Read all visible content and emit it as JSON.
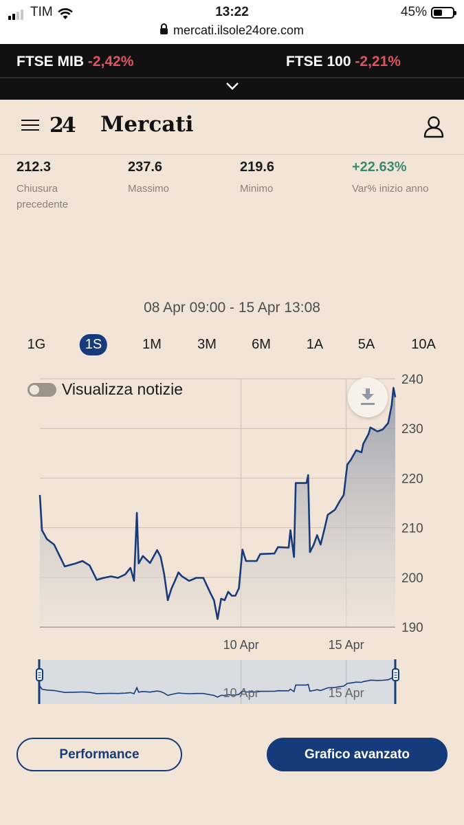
{
  "status_bar": {
    "carrier": "TIM",
    "time": "13:22",
    "battery": "45%",
    "battery_level": 0.45,
    "url": "mercati.ilsole24ore.com"
  },
  "ticker": [
    {
      "name": "FTSE MIB",
      "change": "-2,42%"
    },
    {
      "name": "FTSE 100",
      "change": "-2,21%"
    }
  ],
  "header": {
    "logo": "24",
    "title": "Mercati"
  },
  "stats": [
    {
      "value": "212.3",
      "label": "Chiusura precedente"
    },
    {
      "value": "237.6",
      "label": "Massimo"
    },
    {
      "value": "219.6",
      "label": "Minimo"
    },
    {
      "value": "+22.63%",
      "label": "Var% inizio anno"
    }
  ],
  "date_range": "08 Apr 09:00 - 15 Apr 13:08",
  "periods": [
    "1G",
    "1S",
    "1M",
    "3M",
    "6M",
    "1A",
    "5A",
    "10A"
  ],
  "active_period": "1S",
  "news_toggle": {
    "label": "Visualizza notizie",
    "on": false
  },
  "colors": {
    "accent": "#163b7a",
    "negative": "#e05461",
    "positive": "#3b8a6e",
    "background": "#f2e5d8"
  },
  "chart_data": {
    "type": "area",
    "y_ticks": [
      240,
      230,
      220,
      210,
      200,
      190
    ],
    "x_ticks": [
      "10 Apr",
      "15 Apr"
    ],
    "ylim": [
      190,
      240
    ],
    "grid": true,
    "y_axis_side": "right",
    "series": [
      {
        "points": [
          [
            0.0,
            216.6
          ],
          [
            0.6,
            209.5
          ],
          [
            2.0,
            207.7
          ],
          [
            4.0,
            206.6
          ],
          [
            7.0,
            202.2
          ],
          [
            10.0,
            202.8
          ],
          [
            12.0,
            203.3
          ],
          [
            14.0,
            202.4
          ],
          [
            16.0,
            199.5
          ],
          [
            18.0,
            199.9
          ],
          [
            20.0,
            200.2
          ],
          [
            22.0,
            199.9
          ],
          [
            24.0,
            200.6
          ],
          [
            25.5,
            201.9
          ],
          [
            26.5,
            199.3
          ],
          [
            27.3,
            213.0
          ],
          [
            27.8,
            202.8
          ],
          [
            29.0,
            204.3
          ],
          [
            31.0,
            202.9
          ],
          [
            33.0,
            205.5
          ],
          [
            34.0,
            204.1
          ],
          [
            35.0,
            200.6
          ],
          [
            36.0,
            195.4
          ],
          [
            37.0,
            197.7
          ],
          [
            38.0,
            199.3
          ],
          [
            39.0,
            201.0
          ],
          [
            40.0,
            200.2
          ],
          [
            42.0,
            199.3
          ],
          [
            44.0,
            199.9
          ],
          [
            46.0,
            199.9
          ],
          [
            48.0,
            196.8
          ],
          [
            49.0,
            195.4
          ],
          [
            50.0,
            191.6
          ],
          [
            51.0,
            195.7
          ],
          [
            52.0,
            195.4
          ],
          [
            53.0,
            197.1
          ],
          [
            54.0,
            196.3
          ],
          [
            55.0,
            196.3
          ],
          [
            56.0,
            197.8
          ],
          [
            57.0,
            205.6
          ],
          [
            58.0,
            203.3
          ],
          [
            61.0,
            203.3
          ],
          [
            62.0,
            204.7
          ],
          [
            66.0,
            204.8
          ],
          [
            67.0,
            206.1
          ],
          [
            70.0,
            206.0
          ],
          [
            70.5,
            209.5
          ],
          [
            71.5,
            204.1
          ],
          [
            72.0,
            219.0
          ],
          [
            75.0,
            219.0
          ],
          [
            75.5,
            220.6
          ],
          [
            76.0,
            205.1
          ],
          [
            77.0,
            206.5
          ],
          [
            78.0,
            208.5
          ],
          [
            79.0,
            206.6
          ],
          [
            80.0,
            209.5
          ],
          [
            81.0,
            212.6
          ],
          [
            83.0,
            213.6
          ],
          [
            84.5,
            215.5
          ],
          [
            85.5,
            216.6
          ],
          [
            86.5,
            222.7
          ],
          [
            87.5,
            223.7
          ],
          [
            89.0,
            225.6
          ],
          [
            90.5,
            225.2
          ],
          [
            91.0,
            226.9
          ],
          [
            92.5,
            228.9
          ],
          [
            93.0,
            230.2
          ],
          [
            95.0,
            229.4
          ],
          [
            96.5,
            229.8
          ],
          [
            98.0,
            231.1
          ],
          [
            99.0,
            234.7
          ],
          [
            99.5,
            238.2
          ],
          [
            100.0,
            236.3
          ]
        ]
      }
    ],
    "navigator": {
      "x_ticks": [
        "10 Apr",
        "15 Apr"
      ]
    }
  },
  "buttons": {
    "performance": "Performance",
    "advanced_chart": "Grafico avanzato"
  }
}
